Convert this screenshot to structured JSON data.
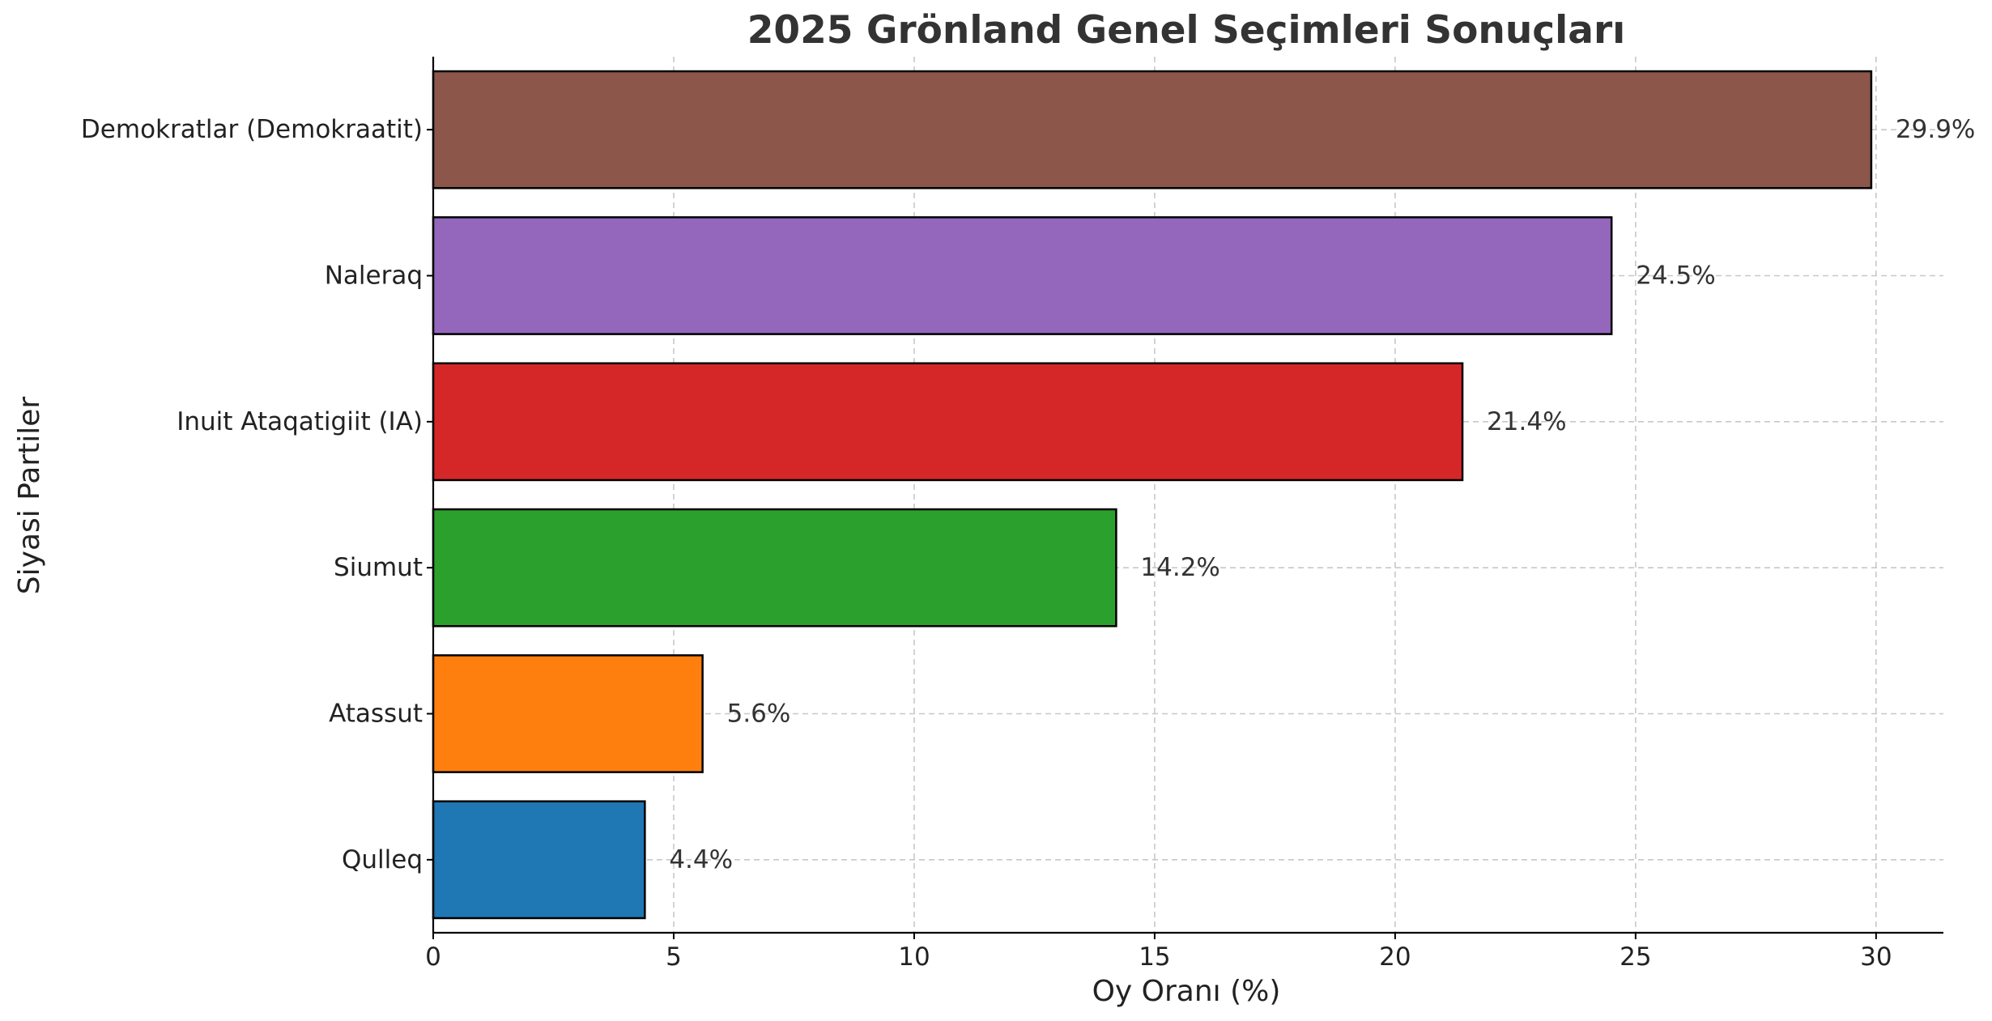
{
  "chart_data": {
    "type": "bar",
    "orientation": "horizontal",
    "title": "2025 Grönland Genel Seçimleri Sonuçları",
    "xlabel": "Oy Oranı (%)",
    "ylabel": "Siyasi Partiler",
    "categories": [
      "Qulleq",
      "Atassut",
      "Siumut",
      "Inuit Ataqatigiit (IA)",
      "Naleraq",
      "Demokratlar (Demokraatit)"
    ],
    "values": [
      4.4,
      5.6,
      14.2,
      21.4,
      24.5,
      29.9
    ],
    "value_labels": [
      "4.4%",
      "5.6%",
      "14.2%",
      "21.4%",
      "24.5%",
      "29.9%"
    ],
    "colors": [
      "#1f77b4",
      "#ff7f0e",
      "#2ca02c",
      "#d62728",
      "#9467bd",
      "#8c564b"
    ],
    "xlim": [
      0,
      31.4
    ],
    "xticks": [
      0,
      5,
      10,
      15,
      20,
      25,
      30
    ],
    "grid": true
  }
}
